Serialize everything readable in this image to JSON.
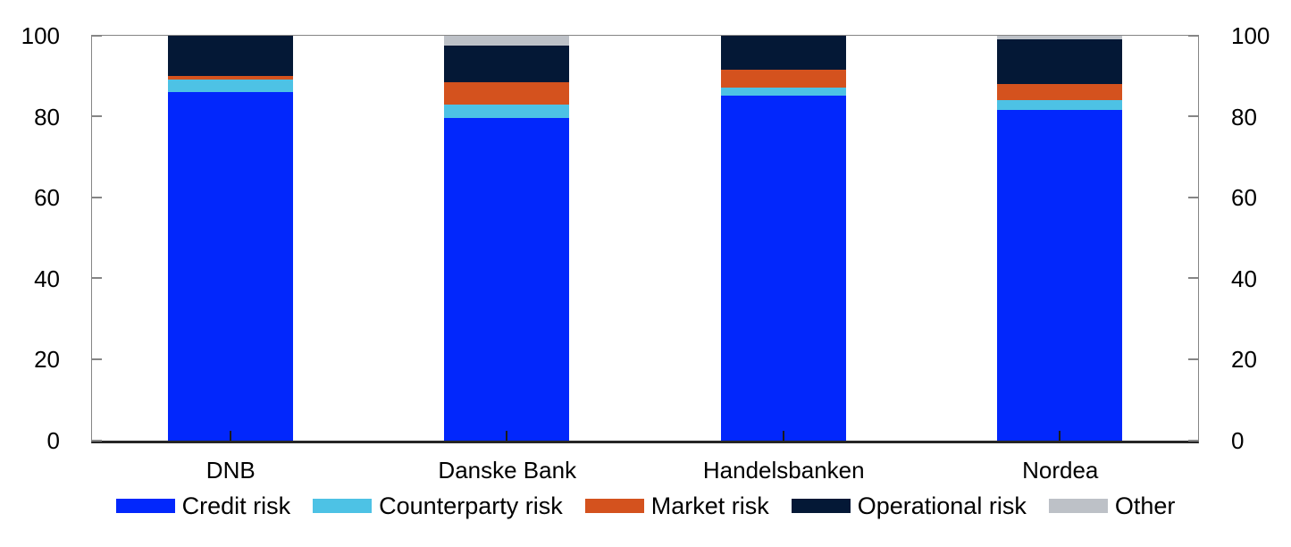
{
  "chart_data": {
    "type": "bar",
    "stacked": true,
    "categories": [
      "DNB",
      "Danske Bank",
      "Handelsbanken",
      "Nordea"
    ],
    "series": [
      {
        "name": "Credit risk",
        "color": "#0227fc",
        "values": [
          86,
          79.5,
          85,
          81.5
        ]
      },
      {
        "name": "Counterparty risk",
        "color": "#4dc2e5",
        "values": [
          3,
          3.5,
          2,
          2.5
        ]
      },
      {
        "name": "Market risk",
        "color": "#d4521e",
        "values": [
          1,
          5.5,
          4.5,
          4
        ]
      },
      {
        "name": "Operational risk",
        "color": "#041836",
        "values": [
          10,
          9,
          8.5,
          11
        ]
      },
      {
        "name": "Other",
        "color": "#bdc1c7",
        "values": [
          0,
          2.5,
          0,
          1
        ]
      }
    ],
    "ylim": [
      0,
      100
    ],
    "yticks": [
      0,
      20,
      40,
      60,
      80,
      100
    ],
    "y_axis_sides": "both",
    "legend_position": "bottom",
    "grid": false
  }
}
